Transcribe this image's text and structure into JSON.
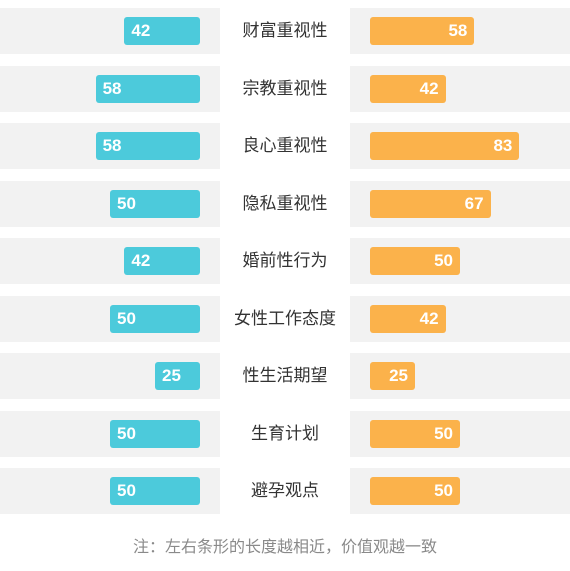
{
  "chart_data": {
    "type": "bar",
    "categories": [
      "财富重视性",
      "宗教重视性",
      "良心重视性",
      "隐私重视性",
      "婚前性行为",
      "女性工作态度",
      "性生活期望",
      "生育计划",
      "避孕观点"
    ],
    "series": [
      {
        "values": [
          42,
          58,
          58,
          50,
          42,
          50,
          25,
          50,
          50
        ],
        "color": "#4ccadb"
      },
      {
        "values": [
          58,
          42,
          83,
          67,
          50,
          42,
          25,
          50,
          50
        ],
        "color": "#fbb24b"
      }
    ],
    "xlim": [
      0,
      100
    ],
    "orientation": "diverging-horizontal",
    "note": "注：左右条形的长度越相近，价值观越一致"
  }
}
